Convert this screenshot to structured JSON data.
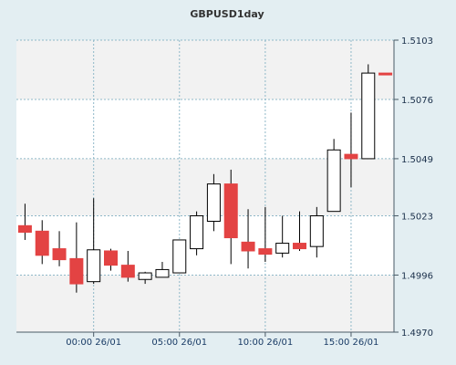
{
  "chart_data": {
    "type": "candlestick",
    "title": "GBPUSD1day",
    "xlabel": "",
    "ylabel": "",
    "ylim": [
      1.497,
      1.5103
    ],
    "yticks": [
      "1.5103",
      "1.5076",
      "1.5049",
      "1.5023",
      "1.4996",
      "1.4970"
    ],
    "xticks": [
      "00:00 26/01",
      "05:00 26/01",
      "10:00 26/01",
      "15:00 26/01"
    ],
    "xtick_positions": [
      4.5,
      9.5,
      14.5,
      19.5
    ],
    "grid": true,
    "colors": {
      "up": "#ffffff",
      "down": "#e34343",
      "outline": "#000000",
      "grid": "#8fb8c8"
    },
    "candles": [
      {
        "o": 1.50185,
        "h": 1.50285,
        "l": 1.5012,
        "c": 1.50155
      },
      {
        "o": 1.5016,
        "h": 1.5021,
        "l": 1.5001,
        "c": 1.5005
      },
      {
        "o": 1.5008,
        "h": 1.5016,
        "l": 1.5,
        "c": 1.5003
      },
      {
        "o": 1.50035,
        "h": 1.502,
        "l": 1.4988,
        "c": 1.4992
      },
      {
        "o": 1.4993,
        "h": 1.5031,
        "l": 1.4992,
        "c": 1.50075
      },
      {
        "o": 1.5007,
        "h": 1.5008,
        "l": 1.4998,
        "c": 1.50005
      },
      {
        "o": 1.50005,
        "h": 1.5007,
        "l": 1.4993,
        "c": 1.4995
      },
      {
        "o": 1.4994,
        "h": 1.49975,
        "l": 1.4992,
        "c": 1.4997
      },
      {
        "o": 1.4995,
        "h": 1.5002,
        "l": 1.4995,
        "c": 1.49985
      },
      {
        "o": 1.4997,
        "h": 1.5012,
        "l": 1.4997,
        "c": 1.5012
      },
      {
        "o": 1.5008,
        "h": 1.5025,
        "l": 1.5005,
        "c": 1.5023
      },
      {
        "o": 1.50205,
        "h": 1.5042,
        "l": 1.5016,
        "c": 1.50375
      },
      {
        "o": 1.50375,
        "h": 1.5044,
        "l": 1.5001,
        "c": 1.5013
      },
      {
        "o": 1.5011,
        "h": 1.5026,
        "l": 1.4999,
        "c": 1.5007
      },
      {
        "o": 1.5008,
        "h": 1.5027,
        "l": 1.5002,
        "c": 1.50055
      },
      {
        "o": 1.5006,
        "h": 1.5023,
        "l": 1.5004,
        "c": 1.50105
      },
      {
        "o": 1.50105,
        "h": 1.5025,
        "l": 1.5007,
        "c": 1.5008
      },
      {
        "o": 1.5009,
        "h": 1.5027,
        "l": 1.5004,
        "c": 1.5023
      },
      {
        "o": 1.5025,
        "h": 1.5058,
        "l": 1.5025,
        "c": 1.5053
      },
      {
        "o": 1.5051,
        "h": 1.507,
        "l": 1.5036,
        "c": 1.5049
      },
      {
        "o": 1.5049,
        "h": 1.5092,
        "l": 1.5049,
        "c": 1.5088
      },
      {
        "o": 1.5088,
        "h": 1.5088,
        "l": 1.5088,
        "c": 1.50875
      }
    ]
  }
}
